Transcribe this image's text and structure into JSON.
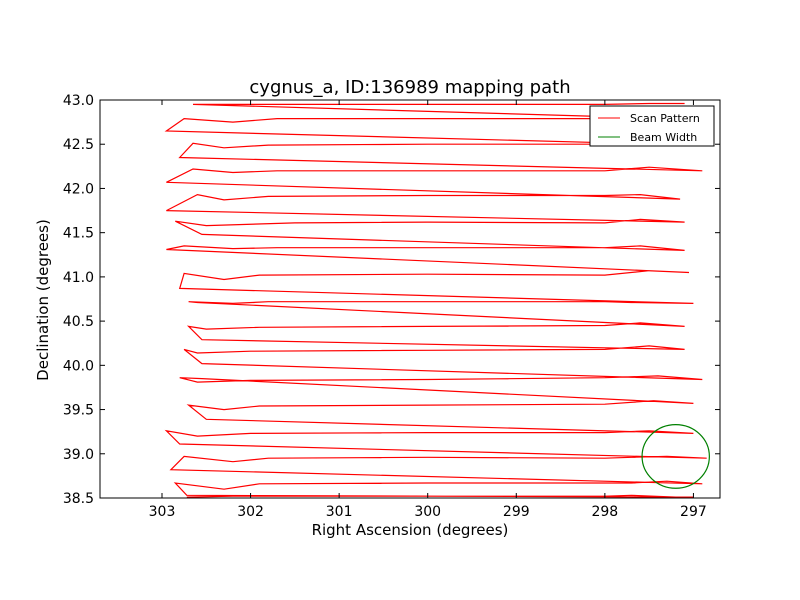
{
  "chart_data": {
    "type": "line",
    "title": "cygnus_a, ID:136989 mapping path",
    "xlabel": "Right Ascension (degrees)",
    "ylabel": "Declination (degrees)",
    "xlim": [
      303.7,
      296.7
    ],
    "ylim": [
      38.5,
      43.0
    ],
    "x_inverted": true,
    "xticks": [
      303,
      302,
      301,
      300,
      299,
      298,
      297
    ],
    "xtick_labels": [
      "303",
      "302",
      "301",
      "300",
      "299",
      "298",
      "297"
    ],
    "yticks": [
      38.5,
      39.0,
      39.5,
      40.0,
      40.5,
      41.0,
      41.5,
      42.0,
      42.5,
      43.0
    ],
    "ytick_labels": [
      "38.5",
      "39.0",
      "39.5",
      "40.0",
      "40.5",
      "41.0",
      "41.5",
      "42.0",
      "42.5",
      "43.0"
    ],
    "grid": false,
    "legend_position": "top-right",
    "series": [
      {
        "name": "Scan Pattern",
        "color": "#ff0000",
        "x": [
          302.72,
          302.2,
          301.8,
          300.0,
          298.0,
          297.7,
          297.2,
          297.0,
          302.72,
          302.85,
          302.3,
          301.9,
          300.0,
          298.0,
          297.7,
          297.3,
          296.9,
          302.9,
          302.75,
          302.2,
          301.8,
          300.0,
          298.0,
          297.7,
          297.3,
          296.85,
          302.8,
          302.95,
          302.6,
          302.0,
          300.0,
          298.0,
          297.5,
          297.0,
          302.5,
          302.7,
          302.3,
          301.9,
          300.0,
          298.0,
          297.45,
          297.0,
          302.55,
          302.8,
          302.6,
          302.0,
          300.0,
          298.0,
          297.4,
          296.9,
          302.55,
          302.75,
          302.6,
          302.0,
          300.0,
          298.0,
          297.5,
          297.1,
          302.55,
          302.7,
          302.5,
          301.9,
          300.0,
          298.0,
          297.6,
          297.1,
          302.6,
          302.7,
          302.2,
          301.8,
          300.0,
          298.0,
          297.7,
          297.0,
          302.8,
          302.75,
          302.3,
          301.9,
          300.0,
          298.0,
          297.5,
          297.05,
          302.95,
          302.75,
          302.2,
          301.7,
          300.0,
          298.0,
          297.6,
          297.1,
          302.55,
          302.85,
          302.5,
          301.5,
          300.0,
          298.0,
          297.6,
          297.1,
          302.95,
          302.6,
          302.3,
          301.8,
          300.0,
          298.0,
          297.6,
          297.15,
          302.95,
          302.65,
          302.2,
          301.7,
          300.0,
          298.0,
          297.5,
          296.9,
          302.8,
          302.65,
          302.3,
          301.8,
          300.0,
          298.0,
          297.6,
          297.0,
          302.95,
          302.75,
          302.2,
          301.7,
          300.0,
          298.0,
          297.3,
          296.9,
          302.65,
          302.3,
          301.8,
          300.0,
          298.0,
          297.5,
          297.1
        ],
        "y": [
          38.51,
          38.52,
          38.52,
          38.52,
          38.52,
          38.53,
          38.51,
          38.51,
          38.53,
          38.67,
          38.6,
          38.66,
          38.67,
          38.67,
          38.67,
          38.69,
          38.66,
          38.82,
          38.97,
          38.91,
          38.95,
          38.96,
          38.95,
          38.96,
          38.97,
          38.95,
          39.11,
          39.26,
          39.2,
          39.23,
          39.24,
          39.24,
          39.26,
          39.23,
          39.39,
          39.55,
          39.5,
          39.54,
          39.55,
          39.56,
          39.6,
          39.57,
          39.85,
          39.86,
          39.81,
          39.83,
          39.84,
          39.86,
          39.88,
          39.84,
          40.02,
          40.18,
          40.14,
          40.16,
          40.17,
          40.18,
          40.22,
          40.18,
          40.29,
          40.44,
          40.41,
          40.43,
          40.44,
          40.45,
          40.48,
          40.44,
          40.71,
          40.72,
          40.7,
          40.72,
          40.72,
          40.72,
          40.71,
          40.7,
          40.87,
          41.04,
          40.97,
          41.02,
          41.03,
          41.02,
          41.07,
          41.05,
          41.31,
          41.35,
          41.32,
          41.33,
          41.33,
          41.33,
          41.35,
          41.3,
          41.48,
          41.63,
          41.58,
          41.61,
          41.62,
          41.61,
          41.65,
          41.62,
          41.75,
          41.93,
          41.87,
          41.91,
          41.92,
          41.92,
          41.93,
          41.88,
          42.07,
          42.22,
          42.18,
          42.2,
          42.2,
          42.2,
          42.24,
          42.2,
          42.35,
          42.51,
          42.46,
          42.49,
          42.5,
          42.5,
          42.53,
          42.49,
          42.65,
          42.79,
          42.75,
          42.79,
          42.79,
          42.79,
          42.82,
          42.78,
          42.95,
          42.95,
          42.95,
          42.95,
          42.95,
          42.96,
          42.96
        ]
      },
      {
        "name": "Beam Width",
        "color": "#008000",
        "center": [
          297.2,
          38.97
        ],
        "radius_ra": 0.38,
        "radius_dec": 0.36
      }
    ]
  }
}
